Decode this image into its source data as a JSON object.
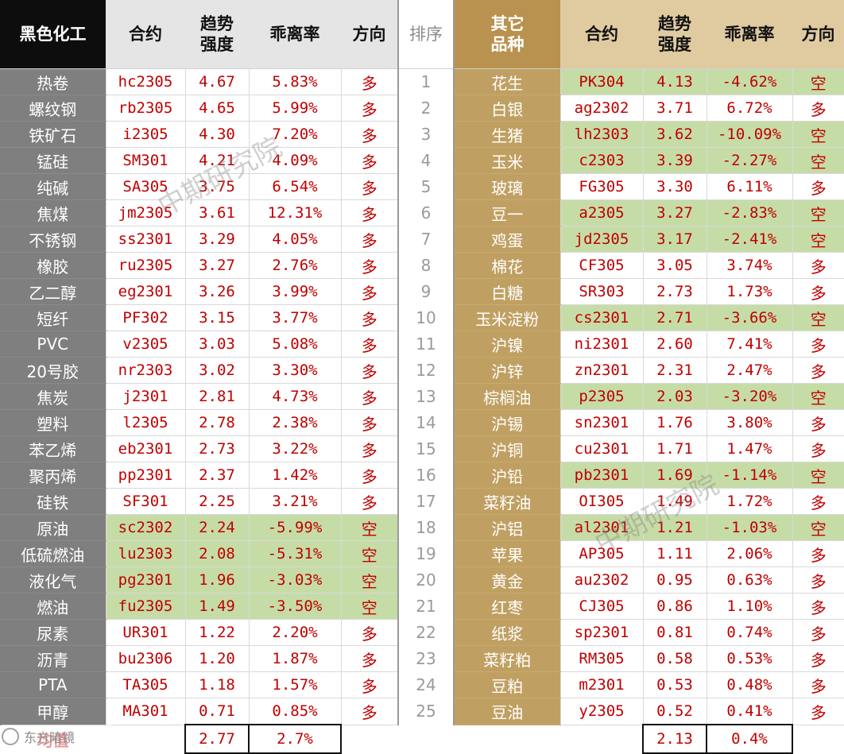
{
  "headers": {
    "left_category": "黑色化工",
    "contract": "合约",
    "trend_strength": "趋势强度",
    "deviation": "乖离率",
    "direction": "方向",
    "rank": "排序",
    "right_category": "其它品种"
  },
  "rows": [
    {
      "rank": "1",
      "l": {
        "name": "热卷",
        "code": "hc2305",
        "trend": "4.67",
        "dev": "5.83%",
        "dir": "多"
      },
      "r": {
        "name": "花生",
        "code": "PK304",
        "trend": "4.13",
        "dev": "-4.62%",
        "dir": "空"
      }
    },
    {
      "rank": "2",
      "l": {
        "name": "螺纹钢",
        "code": "rb2305",
        "trend": "4.65",
        "dev": "5.99%",
        "dir": "多"
      },
      "r": {
        "name": "白银",
        "code": "ag2302",
        "trend": "3.71",
        "dev": "6.72%",
        "dir": "多"
      }
    },
    {
      "rank": "3",
      "l": {
        "name": "铁矿石",
        "code": "i2305",
        "trend": "4.30",
        "dev": "7.20%",
        "dir": "多"
      },
      "r": {
        "name": "生猪",
        "code": "lh2303",
        "trend": "3.62",
        "dev": "-10.09%",
        "dir": "空"
      }
    },
    {
      "rank": "4",
      "l": {
        "name": "锰硅",
        "code": "SM301",
        "trend": "4.21",
        "dev": "4.09%",
        "dir": "多"
      },
      "r": {
        "name": "玉米",
        "code": "c2303",
        "trend": "3.39",
        "dev": "-2.27%",
        "dir": "空"
      }
    },
    {
      "rank": "5",
      "l": {
        "name": "纯碱",
        "code": "SA305",
        "trend": "3.75",
        "dev": "6.54%",
        "dir": "多"
      },
      "r": {
        "name": "玻璃",
        "code": "FG305",
        "trend": "3.30",
        "dev": "6.11%",
        "dir": "多"
      }
    },
    {
      "rank": "6",
      "l": {
        "name": "焦煤",
        "code": "jm2305",
        "trend": "3.61",
        "dev": "12.31%",
        "dir": "多"
      },
      "r": {
        "name": "豆一",
        "code": "a2305",
        "trend": "3.27",
        "dev": "-2.83%",
        "dir": "空"
      }
    },
    {
      "rank": "7",
      "l": {
        "name": "不锈钢",
        "code": "ss2301",
        "trend": "3.29",
        "dev": "4.05%",
        "dir": "多"
      },
      "r": {
        "name": "鸡蛋",
        "code": "jd2305",
        "trend": "3.17",
        "dev": "-2.41%",
        "dir": "空"
      }
    },
    {
      "rank": "8",
      "l": {
        "name": "橡胶",
        "code": "ru2305",
        "trend": "3.27",
        "dev": "2.76%",
        "dir": "多"
      },
      "r": {
        "name": "棉花",
        "code": "CF305",
        "trend": "3.05",
        "dev": "3.74%",
        "dir": "多"
      }
    },
    {
      "rank": "9",
      "l": {
        "name": "乙二醇",
        "code": "eg2301",
        "trend": "3.26",
        "dev": "3.99%",
        "dir": "多"
      },
      "r": {
        "name": "白糖",
        "code": "SR303",
        "trend": "2.73",
        "dev": "1.73%",
        "dir": "多"
      }
    },
    {
      "rank": "10",
      "l": {
        "name": "短纤",
        "code": "PF302",
        "trend": "3.15",
        "dev": "3.77%",
        "dir": "多"
      },
      "r": {
        "name": "玉米淀粉",
        "code": "cs2301",
        "trend": "2.71",
        "dev": "-3.66%",
        "dir": "空"
      }
    },
    {
      "rank": "11",
      "l": {
        "name": "PVC",
        "code": "v2305",
        "trend": "3.03",
        "dev": "5.08%",
        "dir": "多"
      },
      "r": {
        "name": "沪镍",
        "code": "ni2301",
        "trend": "2.60",
        "dev": "7.41%",
        "dir": "多"
      }
    },
    {
      "rank": "12",
      "l": {
        "name": "20号胶",
        "code": "nr2303",
        "trend": "3.02",
        "dev": "3.30%",
        "dir": "多"
      },
      "r": {
        "name": "沪锌",
        "code": "zn2301",
        "trend": "2.31",
        "dev": "2.47%",
        "dir": "多"
      }
    },
    {
      "rank": "13",
      "l": {
        "name": "焦炭",
        "code": "j2301",
        "trend": "2.81",
        "dev": "4.73%",
        "dir": "多"
      },
      "r": {
        "name": "棕榈油",
        "code": "p2305",
        "trend": "2.03",
        "dev": "-3.20%",
        "dir": "空"
      }
    },
    {
      "rank": "14",
      "l": {
        "name": "塑料",
        "code": "l2305",
        "trend": "2.78",
        "dev": "2.38%",
        "dir": "多"
      },
      "r": {
        "name": "沪锡",
        "code": "sn2301",
        "trend": "1.76",
        "dev": "3.80%",
        "dir": "多"
      }
    },
    {
      "rank": "15",
      "l": {
        "name": "苯乙烯",
        "code": "eb2301",
        "trend": "2.73",
        "dev": "3.22%",
        "dir": "多"
      },
      "r": {
        "name": "沪铜",
        "code": "cu2301",
        "trend": "1.71",
        "dev": "1.47%",
        "dir": "多"
      }
    },
    {
      "rank": "16",
      "l": {
        "name": "聚丙烯",
        "code": "pp2301",
        "trend": "2.37",
        "dev": "1.42%",
        "dir": "多"
      },
      "r": {
        "name": "沪铅",
        "code": "pb2301",
        "trend": "1.69",
        "dev": "-1.14%",
        "dir": "空"
      }
    },
    {
      "rank": "17",
      "l": {
        "name": "硅铁",
        "code": "SF301",
        "trend": "2.25",
        "dev": "3.21%",
        "dir": "多"
      },
      "r": {
        "name": "菜籽油",
        "code": "OI305",
        "trend": "1.49",
        "dev": "1.72%",
        "dir": "多"
      }
    },
    {
      "rank": "18",
      "l": {
        "name": "原油",
        "code": "sc2302",
        "trend": "2.24",
        "dev": "-5.99%",
        "dir": "空"
      },
      "r": {
        "name": "沪铝",
        "code": "al2301",
        "trend": "1.21",
        "dev": "-1.03%",
        "dir": "空"
      }
    },
    {
      "rank": "19",
      "l": {
        "name": "低硫燃油",
        "code": "lu2303",
        "trend": "2.08",
        "dev": "-5.31%",
        "dir": "空"
      },
      "r": {
        "name": "苹果",
        "code": "AP305",
        "trend": "1.11",
        "dev": "2.06%",
        "dir": "多"
      }
    },
    {
      "rank": "20",
      "l": {
        "name": "液化气",
        "code": "pg2301",
        "trend": "1.96",
        "dev": "-3.03%",
        "dir": "空"
      },
      "r": {
        "name": "黄金",
        "code": "au2302",
        "trend": "0.95",
        "dev": "0.63%",
        "dir": "多"
      }
    },
    {
      "rank": "21",
      "l": {
        "name": "燃油",
        "code": "fu2305",
        "trend": "1.49",
        "dev": "-3.50%",
        "dir": "空"
      },
      "r": {
        "name": "红枣",
        "code": "CJ305",
        "trend": "0.86",
        "dev": "1.10%",
        "dir": "多"
      }
    },
    {
      "rank": "22",
      "l": {
        "name": "尿素",
        "code": "UR301",
        "trend": "1.22",
        "dev": "2.20%",
        "dir": "多"
      },
      "r": {
        "name": "纸浆",
        "code": "sp2301",
        "trend": "0.81",
        "dev": "0.74%",
        "dir": "多"
      }
    },
    {
      "rank": "23",
      "l": {
        "name": "沥青",
        "code": "bu2306",
        "trend": "1.20",
        "dev": "1.87%",
        "dir": "多"
      },
      "r": {
        "name": "菜籽粕",
        "code": "RM305",
        "trend": "0.58",
        "dev": "0.53%",
        "dir": "多"
      }
    },
    {
      "rank": "24",
      "l": {
        "name": "PTA",
        "code": "TA305",
        "trend": "1.18",
        "dev": "1.57%",
        "dir": "多"
      },
      "r": {
        "name": "豆粕",
        "code": "m2301",
        "trend": "0.53",
        "dev": "0.48%",
        "dir": "多"
      }
    },
    {
      "rank": "25",
      "l": {
        "name": "甲醇",
        "code": "MA301",
        "trend": "0.71",
        "dev": "0.85%",
        "dir": "多"
      },
      "r": {
        "name": "豆油",
        "code": "y2305",
        "trend": "0.52",
        "dev": "0.41%",
        "dir": "多"
      }
    }
  ],
  "average": {
    "label": "均值",
    "left_trend": "2.77",
    "left_dev": "2.7%",
    "right_trend": "2.13",
    "right_dev": "0.4%"
  },
  "watermark": "中期研究院",
  "logo_text": "东方暗镜",
  "short_dir": "空",
  "colors": {
    "left_header": "#0d0d0d",
    "left_category": "#7f7f7f",
    "right_header": "#b8924e",
    "right_category": "#c0a062",
    "short_row": "#c6dca7",
    "value_text": "#c00000"
  }
}
